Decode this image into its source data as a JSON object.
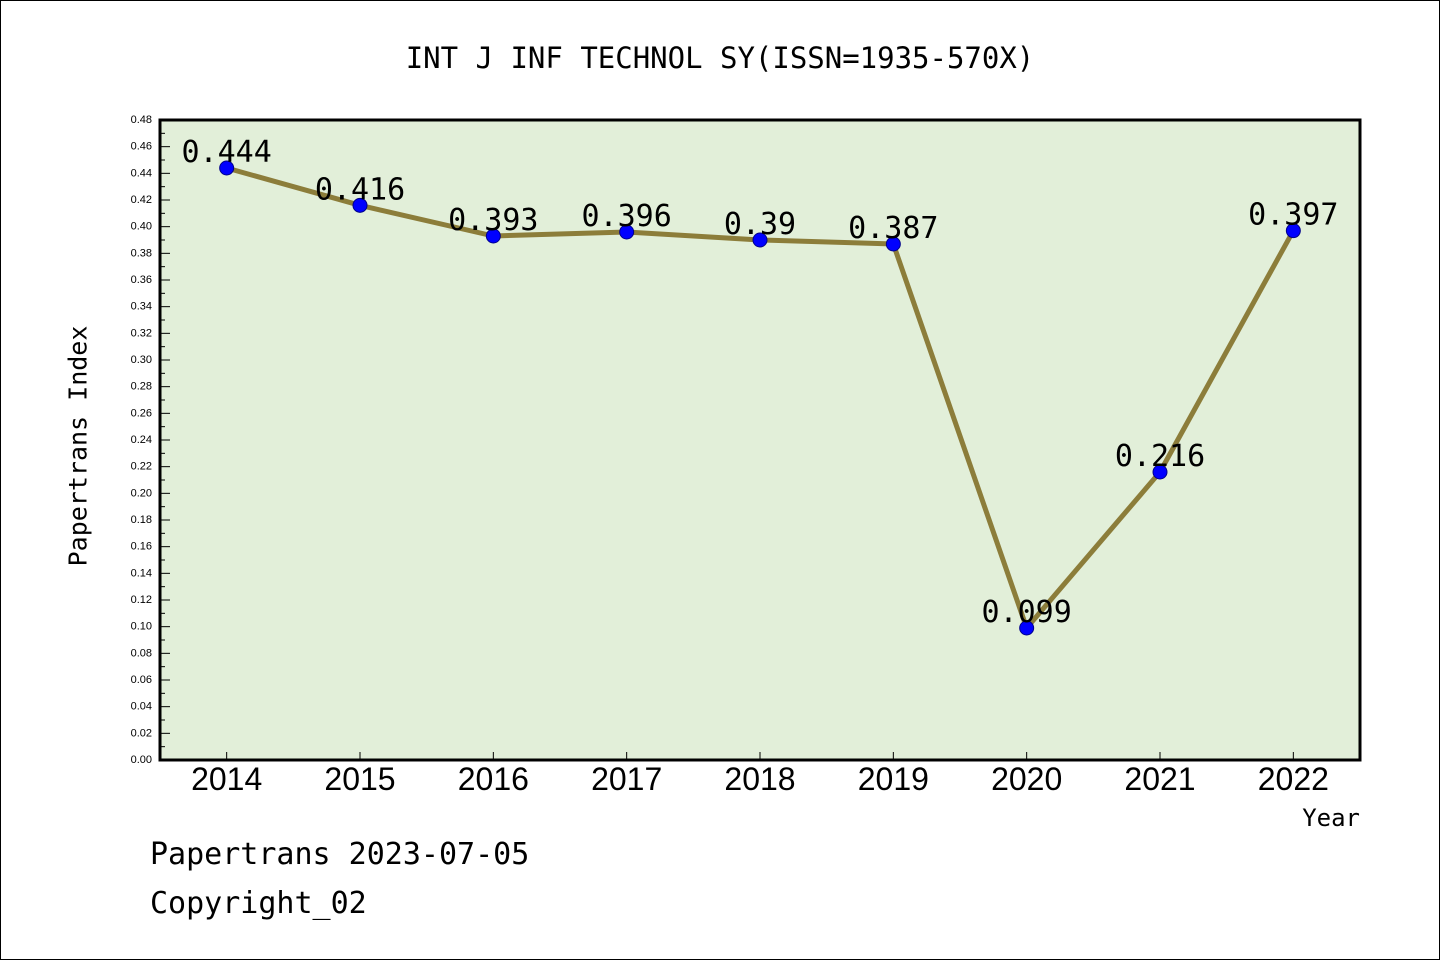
{
  "chart_data": {
    "type": "line",
    "title": "INT J INF TECHNOL SY(ISSN=1935-570X)",
    "xlabel": "Year",
    "ylabel": "Papertrans Index",
    "categories": [
      "2014",
      "2015",
      "2016",
      "2017",
      "2018",
      "2019",
      "2020",
      "2021",
      "2022"
    ],
    "values": [
      0.444,
      0.416,
      0.393,
      0.396,
      0.39,
      0.387,
      0.099,
      0.216,
      0.397
    ],
    "data_labels": [
      "0.444",
      "0.416",
      "0.393",
      "0.396",
      "0.39",
      "0.387",
      "0.099",
      "0.216",
      "0.397"
    ],
    "ylim": [
      0,
      0.48
    ],
    "yticks": [
      "0.00",
      "0.02",
      "0.04",
      "0.06",
      "0.08",
      "0.10",
      "0.12",
      "0.14",
      "0.16",
      "0.18",
      "0.20",
      "0.22",
      "0.24",
      "0.26",
      "0.28",
      "0.30",
      "0.32",
      "0.34",
      "0.36",
      "0.38",
      "0.40",
      "0.42",
      "0.44",
      "0.46",
      "0.48"
    ],
    "grid": false
  },
  "footer": {
    "date_line": "Papertrans 2023-07-05",
    "copyright": "Copyright_02"
  },
  "colors": {
    "plot_background": "#E2EFD9",
    "line": "#8C7D3A",
    "marker": "#0000FF",
    "marker_outline": "#00008B"
  }
}
